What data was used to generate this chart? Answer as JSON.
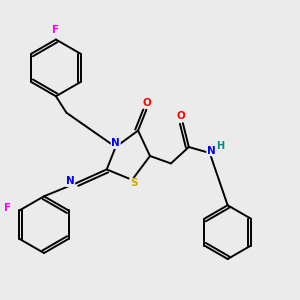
{
  "background_color": "#ebebeb",
  "bond_color": "#000000",
  "atom_colors": {
    "F": "#ff00ff",
    "N": "#0000ff",
    "O": "#ff0000",
    "S": "#ccaa00",
    "H": "#008b8b",
    "C": "#000000"
  },
  "figsize": [
    3.0,
    3.0
  ],
  "dpi": 100
}
